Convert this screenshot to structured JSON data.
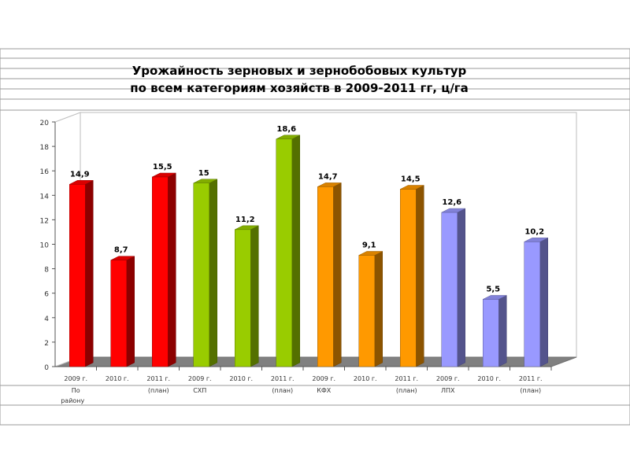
{
  "chart_data": {
    "type": "bar",
    "title_line1": "Урожайность зерновых и зернобобовых культур",
    "title_line2": "по всем категориям хозяйств в 2009-2011 гг, ц/га",
    "ylim": [
      0,
      20
    ],
    "yticks": [
      0,
      2,
      4,
      6,
      8,
      10,
      12,
      14,
      16,
      18,
      20
    ],
    "categories": [
      "2009 г.",
      "2010 г.",
      "2011 г.",
      "2009 г.",
      "2010 г.",
      "2011 г.",
      "2009 г.",
      "2010 г.",
      "2011 г.",
      "2009 г.",
      "2010 г.",
      "2011 г."
    ],
    "sublabels": [
      "(план)",
      "(план)",
      "(план)",
      "(план)"
    ],
    "groups": [
      {
        "label_line1": "По",
        "label_line2": "району",
        "color": "#ff0000"
      },
      {
        "label_line1": "СХП",
        "color": "#99cc00"
      },
      {
        "label_line1": "КФХ",
        "color": "#ff9900"
      },
      {
        "label_line1": "ЛПХ",
        "color": "#9999ff"
      }
    ],
    "values": [
      14.9,
      8.7,
      15.5,
      15,
      11.2,
      18.6,
      14.7,
      9.1,
      14.5,
      12.6,
      5.5,
      10.2
    ],
    "value_labels": [
      "14,9",
      "8,7",
      "15,5",
      "15",
      "11,2",
      "18,6",
      "14,7",
      "9,1",
      "14,5",
      "12,6",
      "5,5",
      "10,2"
    ],
    "legend": "none",
    "grid": false
  }
}
